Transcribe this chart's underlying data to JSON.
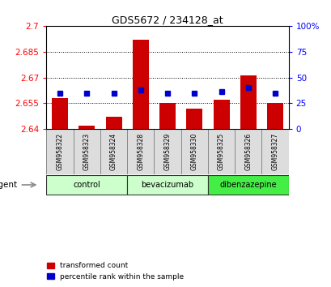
{
  "title": "GDS5672 / 234128_at",
  "samples": [
    "GSM958322",
    "GSM958323",
    "GSM958324",
    "GSM958328",
    "GSM958329",
    "GSM958330",
    "GSM958325",
    "GSM958326",
    "GSM958327"
  ],
  "red_values": [
    2.658,
    2.642,
    2.647,
    2.692,
    2.655,
    2.652,
    2.657,
    2.671,
    2.655
  ],
  "blue_values": [
    35,
    35,
    35,
    38,
    35,
    35,
    36,
    40,
    35
  ],
  "ymin": 2.64,
  "ymax": 2.7,
  "yticks": [
    2.64,
    2.655,
    2.67,
    2.685,
    2.7
  ],
  "ytick_labels": [
    "2.64",
    "2.655",
    "2.67",
    "2.685",
    "2.7"
  ],
  "y2min": 0,
  "y2max": 100,
  "y2ticks": [
    0,
    25,
    50,
    75,
    100
  ],
  "y2tick_labels": [
    "0",
    "25",
    "50",
    "75",
    "100%"
  ],
  "grid_ticks": [
    2.655,
    2.67,
    2.685
  ],
  "groups": [
    {
      "label": "control",
      "start": 0,
      "end": 3,
      "color": "#ccffcc"
    },
    {
      "label": "bevacizumab",
      "start": 3,
      "end": 6,
      "color": "#ccffcc"
    },
    {
      "label": "dibenzazepine",
      "start": 6,
      "end": 9,
      "color": "#44ee44"
    }
  ],
  "bar_color": "#cc0000",
  "dot_color": "#0000cc",
  "bar_bottom": 2.64,
  "bar_width": 0.6,
  "xlabel_agent": "agent"
}
